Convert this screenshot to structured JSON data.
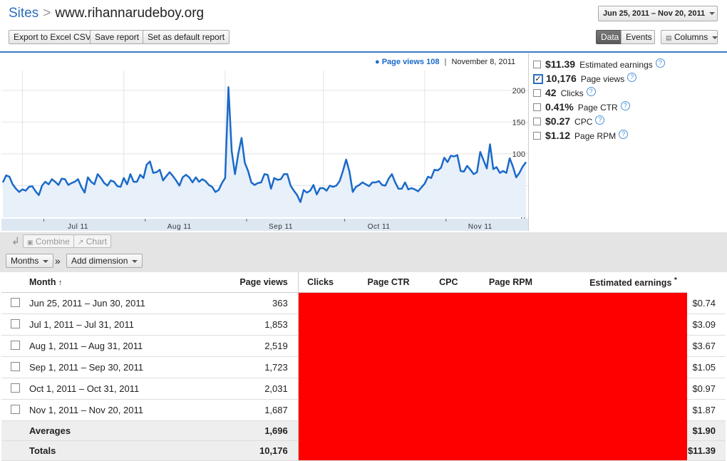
{
  "header": {
    "sites_label": "Sites",
    "separator": ">",
    "site_name": "www.rihannarudeboy.org",
    "date_range": "Jun 25, 2011 – Nov 20, 2011"
  },
  "toolbar": {
    "export_label": "Export to Excel CSV",
    "save_label": "Save report",
    "default_label": "Set as default report",
    "data_label": "Data",
    "events_label": "Events",
    "columns_label": "Columns"
  },
  "chart_legend": {
    "series_label": "Page views 108",
    "date": "November 8, 2011"
  },
  "metrics": [
    {
      "value": "$11.39",
      "label": "Estimated earnings",
      "checked": false
    },
    {
      "value": "10,176",
      "label": "Page views",
      "checked": true
    },
    {
      "value": "42",
      "label": "Clicks",
      "checked": false
    },
    {
      "value": "0.41%",
      "label": "Page CTR",
      "checked": false
    },
    {
      "value": "$0.27",
      "label": "CPC",
      "checked": false
    },
    {
      "value": "$1.12",
      "label": "Page RPM",
      "checked": false
    }
  ],
  "chart_data": {
    "type": "line",
    "series": [
      {
        "name": "Page views",
        "values": [
          55,
          66,
          64,
          52,
          45,
          40,
          44,
          42,
          48,
          49,
          41,
          35,
          50,
          56,
          52,
          60,
          56,
          51,
          61,
          60,
          51,
          54,
          56,
          60,
          48,
          39,
          63,
          56,
          52,
          68,
          62,
          54,
          50,
          58,
          56,
          49,
          48,
          62,
          52,
          68,
          56,
          56,
          67,
          62,
          83,
          88,
          70,
          71,
          75,
          58,
          65,
          71,
          65,
          58,
          50,
          63,
          67,
          63,
          55,
          63,
          56,
          60,
          57,
          51,
          48,
          40,
          43,
          54,
          62,
          205,
          104,
          68,
          100,
          125,
          86,
          73,
          55,
          51,
          54,
          55,
          68,
          67,
          45,
          62,
          59,
          60,
          68,
          68,
          50,
          42,
          35,
          24,
          43,
          39,
          42,
          51,
          36,
          46,
          46,
          42,
          50,
          48,
          50,
          57,
          73,
          91,
          72,
          40,
          48,
          51,
          55,
          52,
          49,
          55,
          55,
          57,
          51,
          50,
          61,
          68,
          55,
          45,
          45,
          55,
          44,
          46,
          44,
          41,
          47,
          53,
          64,
          62,
          75,
          74,
          78,
          94,
          87,
          97,
          96,
          98,
          73,
          72,
          81,
          75,
          68,
          71,
          103,
          90,
          77,
          115,
          76,
          79,
          70,
          73,
          70,
          93,
          80,
          63,
          70,
          80,
          87
        ],
        "color": "#1a6ac8"
      }
    ],
    "x_ticks": [
      "Jul 11",
      "Aug 11",
      "Sep 11",
      "Oct 11",
      "Nov 11"
    ],
    "x_tick_index": [
      6,
      37,
      68,
      98,
      129
    ],
    "y_ticks": [
      0,
      50,
      100,
      150,
      200
    ],
    "ylim": [
      0,
      220
    ],
    "grid": true,
    "highlight": {
      "label": "Page views 108",
      "date": "November 8, 2011"
    }
  },
  "controls": {
    "combine_label": "Combine",
    "chart_label": "Chart",
    "months_label": "Months",
    "arrows": "»",
    "add_dimension_label": "Add dimension"
  },
  "table": {
    "columns": [
      "Month",
      "Page views",
      "Clicks",
      "Page CTR",
      "CPC",
      "Page RPM",
      "Estimated earnings"
    ],
    "sort_indicator": "↑",
    "asterisk": "*",
    "rows": [
      {
        "month": "Jun 25, 2011 – Jun 30, 2011",
        "views": "363",
        "earnings": "$0.74"
      },
      {
        "month": "Jul 1, 2011 – Jul 31, 2011",
        "views": "1,853",
        "earnings": "$3.09"
      },
      {
        "month": "Aug 1, 2011 – Aug 31, 2011",
        "views": "2,519",
        "earnings": "$3.67"
      },
      {
        "month": "Sep 1, 2011 – Sep 30, 2011",
        "views": "1,723",
        "earnings": "$1.05"
      },
      {
        "month": "Oct 1, 2011 – Oct 31, 2011",
        "views": "2,031",
        "earnings": "$0.97"
      },
      {
        "month": "Nov 1, 2011 – Nov 20, 2011",
        "views": "1,687",
        "earnings": "$1.87"
      }
    ],
    "averages": {
      "label": "Averages",
      "views": "1,696",
      "earnings": "$1.90"
    },
    "totals": {
      "label": "Totals",
      "views": "10,176",
      "earnings": "$11.39"
    },
    "redaction_color": "#ff0000"
  }
}
